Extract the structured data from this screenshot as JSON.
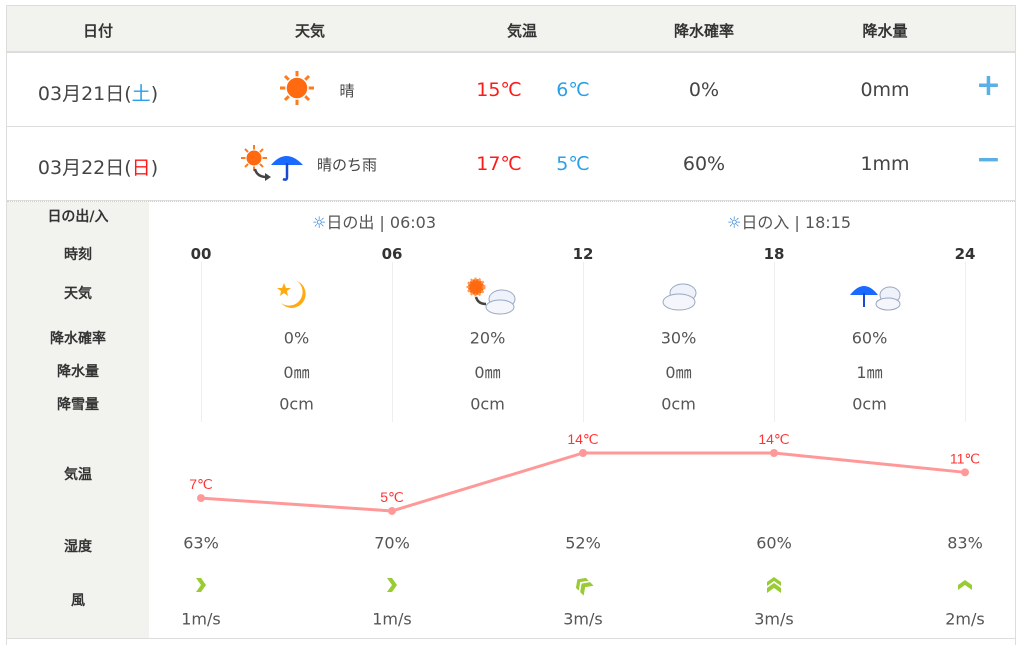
{
  "header": {
    "date": "日付",
    "weather": "天気",
    "temp": "気温",
    "precip_prob": "降水確率",
    "precip_amount": "降水量"
  },
  "days": [
    {
      "date_prefix": "03月21日(",
      "weekday": "土",
      "date_suffix": ")",
      "weather_icon": "sunny-icon",
      "weather": "晴",
      "high": "15℃",
      "low": "6℃",
      "precip_prob": "0%",
      "precip": "0mm",
      "toggle": "+",
      "expanded": false
    },
    {
      "date_prefix": "03月22日(",
      "weekday": "日",
      "date_suffix": ")",
      "weather_icon": "sunny-then-rain-icon",
      "weather": "晴のち雨",
      "high": "17℃",
      "low": "5℃",
      "precip_prob": "60%",
      "precip": "1mm",
      "toggle": "−",
      "expanded": true
    }
  ],
  "detail": {
    "labels": {
      "sun": "日の出/入",
      "time": "時刻",
      "weather": "天気",
      "precip_prob": "降水確率",
      "precip": "降水量",
      "snow": "降雪量",
      "temp": "気温",
      "humidity": "湿度",
      "wind": "風"
    },
    "sunrise": {
      "label": "日の出",
      "time": "06:03"
    },
    "sunset": {
      "label": "日の入",
      "time": "18:15"
    },
    "hours": [
      "00",
      "06",
      "12",
      "18",
      "24"
    ],
    "blocks": [
      {
        "icon": "moon-icon",
        "precip_prob": "0%",
        "precip": "0㎜",
        "snow": "0cm"
      },
      {
        "icon": "sunny-then-cloudy-icon",
        "precip_prob": "20%",
        "precip": "0㎜",
        "snow": "0cm"
      },
      {
        "icon": "cloudy-icon",
        "precip_prob": "30%",
        "precip": "0㎜",
        "snow": "0cm"
      },
      {
        "icon": "rain-cloudy-icon",
        "precip_prob": "60%",
        "precip": "1㎜",
        "snow": "0cm"
      }
    ],
    "temps": [
      7,
      5,
      14,
      14,
      11
    ],
    "temp_labels": [
      "7℃",
      "5℃",
      "14℃",
      "14℃",
      "11℃"
    ],
    "humidity": [
      "63%",
      "70%",
      "52%",
      "60%",
      "83%"
    ],
    "wind": [
      {
        "speed": "1m/s",
        "dir": "east"
      },
      {
        "speed": "1m/s",
        "dir": "east"
      },
      {
        "speed": "3m/s",
        "dir": "north-west"
      },
      {
        "speed": "3m/s",
        "dir": "north"
      },
      {
        "speed": "2m/s",
        "dir": "north"
      }
    ]
  },
  "colors": {
    "high": "#ff1a1a",
    "low": "#2aa0e8",
    "temp_line": "#ff9999",
    "wind": "#99cc33"
  }
}
